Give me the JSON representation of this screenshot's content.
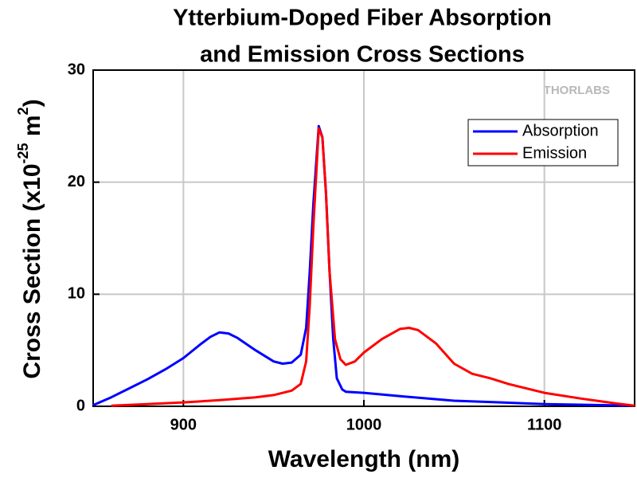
{
  "chart_data": {
    "type": "line",
    "title": [
      "Ytterbium-Doped Fiber Absorption",
      "and Emission Cross Sections"
    ],
    "xlabel": "Wavelength (nm)",
    "ylabel": {
      "text": "Cross Section (x10",
      "exp": "-25",
      "unit": " m",
      "unit_exp": "2",
      "close": ")"
    },
    "watermark": "THORLABS",
    "xlim": [
      850,
      1150
    ],
    "xticks": [
      900,
      1000,
      1100
    ],
    "ylim": [
      0,
      30
    ],
    "yticks": [
      0,
      10,
      20,
      30
    ],
    "grid": true,
    "legend": "upper right",
    "series": [
      {
        "name": "Absorption",
        "color": "#0000ff",
        "x": [
          850,
          860,
          870,
          880,
          890,
          900,
          910,
          915,
          920,
          925,
          930,
          940,
          950,
          955,
          960,
          965,
          968,
          970,
          972,
          975,
          977,
          979,
          981,
          983,
          985,
          988,
          990,
          1000,
          1020,
          1050,
          1100,
          1150
        ],
        "values": [
          0.1,
          0.8,
          1.6,
          2.4,
          3.3,
          4.3,
          5.6,
          6.2,
          6.6,
          6.5,
          6.1,
          5.0,
          4.0,
          3.8,
          3.9,
          4.6,
          7,
          12,
          18,
          25,
          24,
          19,
          12,
          6,
          2.5,
          1.5,
          1.3,
          1.2,
          0.9,
          0.5,
          0.2,
          0.05
        ]
      },
      {
        "name": "Emission",
        "color": "#ff0000",
        "x": [
          860,
          880,
          900,
          920,
          940,
          950,
          960,
          965,
          968,
          970,
          972,
          975,
          977,
          979,
          981,
          984,
          987,
          990,
          995,
          1000,
          1010,
          1020,
          1025,
          1030,
          1040,
          1050,
          1060,
          1070,
          1080,
          1100,
          1120,
          1140,
          1150
        ],
        "values": [
          0.05,
          0.2,
          0.35,
          0.55,
          0.8,
          1.0,
          1.4,
          2.0,
          4,
          9,
          16,
          24.8,
          24,
          19,
          12,
          6,
          4.2,
          3.7,
          4.0,
          4.8,
          6.0,
          6.9,
          7.0,
          6.8,
          5.6,
          3.8,
          2.9,
          2.5,
          2.0,
          1.2,
          0.7,
          0.25,
          0.05
        ]
      }
    ]
  }
}
